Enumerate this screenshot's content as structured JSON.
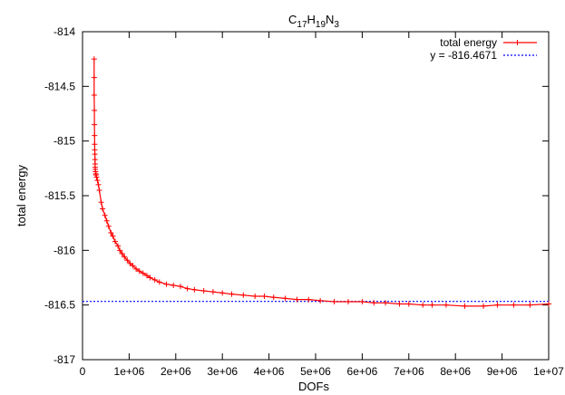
{
  "chart_data": {
    "type": "line",
    "title": {
      "main": "C",
      "parts": [
        {
          "text": "C",
          "sub": false
        },
        {
          "text": "17",
          "sub": true
        },
        {
          "text": "H",
          "sub": false
        },
        {
          "text": "19",
          "sub": true
        },
        {
          "text": "N",
          "sub": false
        },
        {
          "text": "3",
          "sub": true
        }
      ]
    },
    "xlabel": "DOFs",
    "ylabel": "total energy",
    "xlim": [
      0,
      10000000
    ],
    "ylim": [
      -817,
      -814
    ],
    "x_ticks": [
      {
        "value": 0,
        "label": "0"
      },
      {
        "value": 1000000,
        "label": "1e+06"
      },
      {
        "value": 2000000,
        "label": "2e+06"
      },
      {
        "value": 3000000,
        "label": "3e+06"
      },
      {
        "value": 4000000,
        "label": "4e+06"
      },
      {
        "value": 5000000,
        "label": "5e+06"
      },
      {
        "value": 6000000,
        "label": "6e+06"
      },
      {
        "value": 7000000,
        "label": "7e+06"
      },
      {
        "value": 8000000,
        "label": "8e+06"
      },
      {
        "value": 9000000,
        "label": "9e+06"
      },
      {
        "value": 10000000,
        "label": "1e+07"
      }
    ],
    "y_ticks": [
      {
        "value": -814,
        "label": "-814"
      },
      {
        "value": -814.5,
        "label": "-814.5"
      },
      {
        "value": -815,
        "label": "-815"
      },
      {
        "value": -815.5,
        "label": "-815.5"
      },
      {
        "value": -816,
        "label": "-816"
      },
      {
        "value": -816.5,
        "label": "-816.5"
      },
      {
        "value": -817,
        "label": "-817"
      }
    ],
    "grid": false,
    "legend_position": "top-right",
    "series": [
      {
        "name": "total energy",
        "color": "#ff0000",
        "marker": "plus",
        "x": [
          250000,
          250000,
          250000,
          255000,
          255000,
          258000,
          260000,
          262000,
          265000,
          268000,
          270000,
          272000,
          275000,
          280000,
          285000,
          290000,
          300000,
          320000,
          340000,
          360000,
          400000,
          430000,
          480000,
          520000,
          560000,
          610000,
          650000,
          700000,
          760000,
          800000,
          850000,
          900000,
          960000,
          1020000,
          1080000,
          1150000,
          1220000,
          1300000,
          1380000,
          1450000,
          1550000,
          1650000,
          1800000,
          1950000,
          2100000,
          2250000,
          2400000,
          2600000,
          2800000,
          3000000,
          3200000,
          3450000,
          3700000,
          3900000,
          4100000,
          4350000,
          4600000,
          4850000,
          5100000,
          5400000,
          5700000,
          6000000,
          6250000,
          6500000,
          6800000,
          7000000,
          7300000,
          7500000,
          7800000,
          8200000,
          8600000,
          8900000,
          9250000,
          9600000,
          10000000
        ],
        "y": [
          -814.25,
          -814.42,
          -814.58,
          -814.72,
          -814.85,
          -814.95,
          -815.03,
          -815.08,
          -815.12,
          -815.17,
          -815.21,
          -815.24,
          -815.26,
          -815.28,
          -815.3,
          -815.31,
          -815.33,
          -815.36,
          -815.4,
          -815.45,
          -815.56,
          -815.62,
          -815.68,
          -815.73,
          -815.78,
          -815.84,
          -815.87,
          -815.92,
          -815.96,
          -816.0,
          -816.03,
          -816.06,
          -816.09,
          -816.12,
          -816.14,
          -816.17,
          -816.19,
          -816.21,
          -816.23,
          -816.25,
          -816.27,
          -816.29,
          -816.31,
          -816.32,
          -816.33,
          -816.35,
          -816.36,
          -816.37,
          -816.38,
          -816.39,
          -816.4,
          -816.41,
          -816.42,
          -816.42,
          -816.43,
          -816.44,
          -816.45,
          -816.45,
          -816.46,
          -816.47,
          -816.47,
          -816.47,
          -816.48,
          -816.48,
          -816.49,
          -816.49,
          -816.5,
          -816.5,
          -816.5,
          -816.51,
          -816.51,
          -816.5,
          -816.5,
          -816.5,
          -816.49
        ]
      },
      {
        "name": "y = -816.4671",
        "color": "#0000ff",
        "style": "dotted",
        "constant": -816.4671
      }
    ]
  }
}
